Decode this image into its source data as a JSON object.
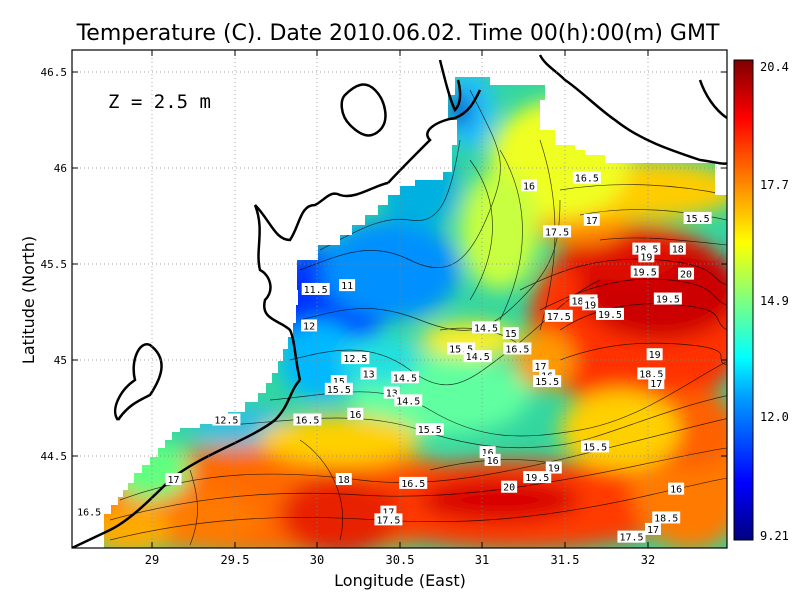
{
  "title": "Temperature (C). Date 2010.06.02. Time 00(h):00(m) GMT",
  "depth_label": "Z = 2.5 m",
  "x_axis": {
    "label": "Longitude (East)",
    "ticks": [
      "29",
      "29.5",
      "30",
      "30.5",
      "31",
      "31.5",
      "32"
    ],
    "range": [
      28.5,
      32.45
    ]
  },
  "y_axis": {
    "label": "Latitude (North)",
    "ticks": [
      "44.5",
      "45",
      "45.5",
      "46",
      "46.5"
    ],
    "range": [
      44.05,
      46.55
    ]
  },
  "colorbar": {
    "labels": [
      "20.4",
      "17.7",
      "14.9",
      "12.0",
      "9.21"
    ],
    "min": 9.21,
    "max": 20.4,
    "colors": [
      "#00007f",
      "#0000ff",
      "#00a0ff",
      "#00ffff",
      "#7fff7f",
      "#ffff00",
      "#ff8000",
      "#ff0000",
      "#7f0000"
    ]
  },
  "contour_labels": [
    {
      "text": "16",
      "lon": 31.28,
      "lat": 45.91
    },
    {
      "text": "16.5",
      "lon": 31.63,
      "lat": 45.95
    },
    {
      "text": "17",
      "lon": 31.66,
      "lat": 45.73
    },
    {
      "text": "17.5",
      "lon": 31.45,
      "lat": 45.67
    },
    {
      "text": "15.5",
      "lon": 32.3,
      "lat": 45.74
    },
    {
      "text": "18.5",
      "lon": 31.99,
      "lat": 45.58
    },
    {
      "text": "18",
      "lon": 32.18,
      "lat": 45.58
    },
    {
      "text": "19",
      "lon": 31.99,
      "lat": 45.54
    },
    {
      "text": "19.5",
      "lon": 31.98,
      "lat": 45.46
    },
    {
      "text": "20",
      "lon": 32.23,
      "lat": 45.45
    },
    {
      "text": "11.5",
      "lon": 29.99,
      "lat": 45.37
    },
    {
      "text": "11",
      "lon": 30.18,
      "lat": 45.39
    },
    {
      "text": "12",
      "lon": 29.95,
      "lat": 45.18
    },
    {
      "text": "14.5",
      "lon": 31.02,
      "lat": 45.17
    },
    {
      "text": "15",
      "lon": 31.17,
      "lat": 45.14
    },
    {
      "text": "15.5",
      "lon": 30.87,
      "lat": 45.06
    },
    {
      "text": "16.5",
      "lon": 31.21,
      "lat": 45.06
    },
    {
      "text": "14.5",
      "lon": 30.97,
      "lat": 45.02
    },
    {
      "text": "17",
      "lon": 31.35,
      "lat": 44.97
    },
    {
      "text": "16",
      "lon": 31.39,
      "lat": 44.92
    },
    {
      "text": "15.5",
      "lon": 31.39,
      "lat": 44.89
    },
    {
      "text": "17.5",
      "lon": 31.46,
      "lat": 45.23
    },
    {
      "text": "18.5",
      "lon": 31.61,
      "lat": 45.31
    },
    {
      "text": "19",
      "lon": 31.65,
      "lat": 45.29
    },
    {
      "text": "19.5",
      "lon": 31.77,
      "lat": 45.24
    },
    {
      "text": "12.5",
      "lon": 30.23,
      "lat": 45.01
    },
    {
      "text": "13",
      "lon": 30.31,
      "lat": 44.93
    },
    {
      "text": "14.5",
      "lon": 30.53,
      "lat": 44.91
    },
    {
      "text": "15",
      "lon": 30.13,
      "lat": 44.89
    },
    {
      "text": "15.5",
      "lon": 30.13,
      "lat": 44.85
    },
    {
      "text": "13",
      "lon": 30.45,
      "lat": 44.83
    },
    {
      "text": "14.5",
      "lon": 30.55,
      "lat": 44.79
    },
    {
      "text": "16",
      "lon": 30.23,
      "lat": 44.72
    },
    {
      "text": "12.5",
      "lon": 29.45,
      "lat": 44.69
    },
    {
      "text": "16.5",
      "lon": 29.94,
      "lat": 44.69
    },
    {
      "text": "15.5",
      "lon": 30.68,
      "lat": 44.64
    },
    {
      "text": "16",
      "lon": 31.03,
      "lat": 44.52
    },
    {
      "text": "16",
      "lon": 31.06,
      "lat": 44.48
    },
    {
      "text": "15.5",
      "lon": 31.68,
      "lat": 44.55
    },
    {
      "text": "19",
      "lon": 31.43,
      "lat": 44.44
    },
    {
      "text": "19.5",
      "lon": 31.33,
      "lat": 44.39
    },
    {
      "text": "20",
      "lon": 31.16,
      "lat": 44.34
    },
    {
      "text": "17",
      "lon": 29.13,
      "lat": 44.38
    },
    {
      "text": "18",
      "lon": 30.16,
      "lat": 44.38
    },
    {
      "text": "16.5",
      "lon": 30.58,
      "lat": 44.36
    },
    {
      "text": "16",
      "lon": 32.17,
      "lat": 44.33
    },
    {
      "text": "16.5",
      "lon": 28.62,
      "lat": 44.21
    },
    {
      "text": "17",
      "lon": 30.43,
      "lat": 44.21
    },
    {
      "text": "17.5",
      "lon": 30.43,
      "lat": 44.17
    },
    {
      "text": "18.5",
      "lon": 32.11,
      "lat": 44.18
    },
    {
      "text": "17",
      "lon": 32.03,
      "lat": 44.12
    },
    {
      "text": "17.5",
      "lon": 31.9,
      "lat": 44.08
    },
    {
      "text": "19.5",
      "lon": 32.12,
      "lat": 45.32
    },
    {
      "text": "19",
      "lon": 32.04,
      "lat": 45.03
    },
    {
      "text": "18.5",
      "lon": 32.02,
      "lat": 44.93
    },
    {
      "text": "17",
      "lon": 32.05,
      "lat": 44.88
    }
  ]
}
